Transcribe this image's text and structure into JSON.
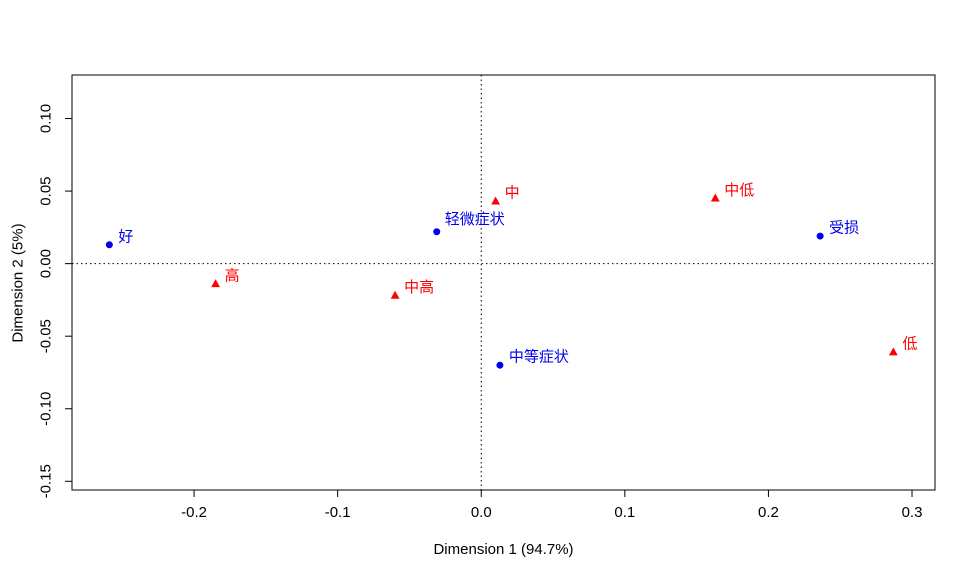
{
  "chart_data": {
    "type": "scatter",
    "title": "",
    "xlabel": "Dimension 1 (94.7%)",
    "ylabel": "Dimension 2 (5%)",
    "xlim": [
      -0.285,
      0.316
    ],
    "ylim": [
      -0.156,
      0.13
    ],
    "x_ticks": [
      -0.2,
      -0.1,
      0.0,
      0.1,
      0.2,
      0.3
    ],
    "x_tick_labels": [
      "-0.2",
      "-0.1",
      "0.0",
      "0.1",
      "0.2",
      "0.3"
    ],
    "y_ticks": [
      -0.15,
      -0.1,
      -0.05,
      0.0,
      0.05,
      0.1
    ],
    "y_tick_labels": [
      "-0.15",
      "-0.10",
      "-0.05",
      "0.00",
      "0.05",
      "0.10"
    ],
    "grid": "dotted zero lines at x=0 and y=0",
    "legend": "none",
    "frame": "full box",
    "colors": {
      "row_points": "#0000ee",
      "col_points": "#ff0000",
      "axis": "#000000"
    },
    "series": [
      {
        "name": "row-points-blue-circles",
        "marker": "circle",
        "color": "#0000ee",
        "points": [
          {
            "label": "好",
            "x": -0.259,
            "y": 0.013
          },
          {
            "label": "轻微症状",
            "x": -0.031,
            "y": 0.022,
            "ldx": 8,
            "ldy": -12
          },
          {
            "label": "中等症状",
            "x": 0.013,
            "y": -0.07
          },
          {
            "label": "受损",
            "x": 0.236,
            "y": 0.019
          }
        ]
      },
      {
        "name": "col-points-red-triangles",
        "marker": "triangle",
        "color": "#ff0000",
        "points": [
          {
            "label": "高",
            "x": -0.185,
            "y": -0.014
          },
          {
            "label": "中高",
            "x": -0.06,
            "y": -0.022
          },
          {
            "label": "中",
            "x": 0.01,
            "y": 0.043
          },
          {
            "label": "中低",
            "x": 0.163,
            "y": 0.045
          },
          {
            "label": "低",
            "x": 0.287,
            "y": -0.061
          }
        ]
      }
    ]
  }
}
